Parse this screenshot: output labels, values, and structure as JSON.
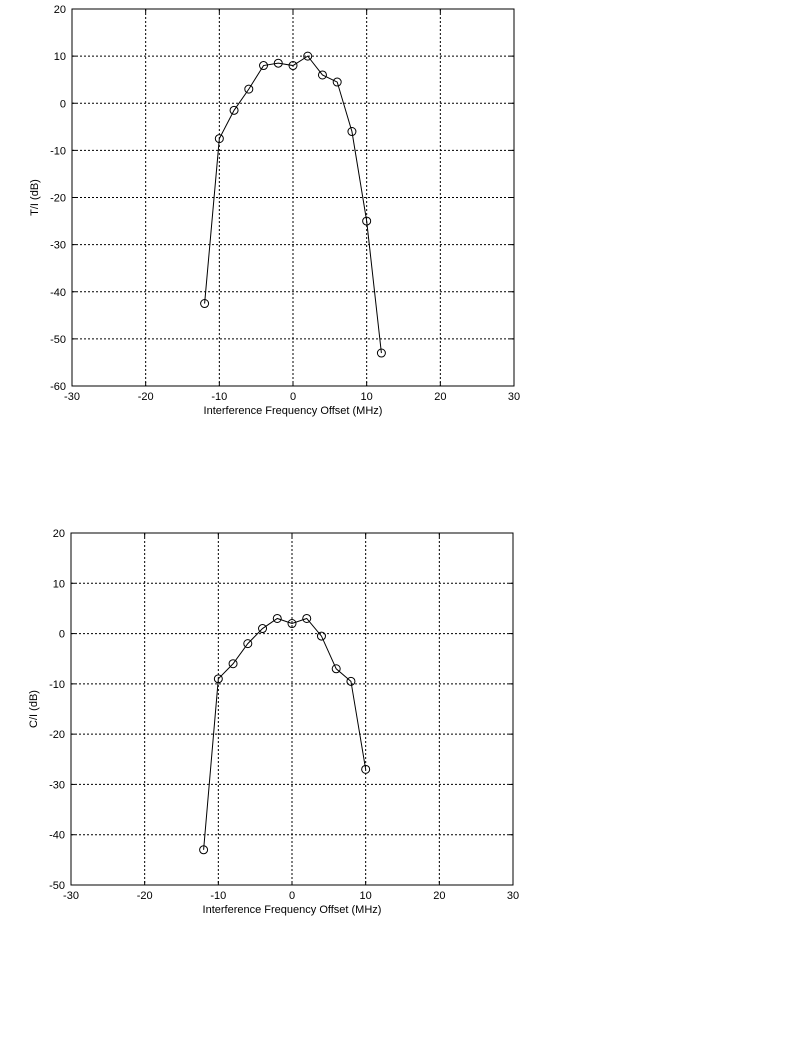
{
  "chart_data": [
    {
      "type": "line",
      "title": "",
      "xlabel": "Interference Frequency Offset (MHz)",
      "ylabel": "T/I (dB)",
      "xlim": [
        -30,
        30
      ],
      "ylim": [
        -60,
        20
      ],
      "xticks": [
        -30,
        -20,
        -10,
        0,
        10,
        20,
        30
      ],
      "yticks": [
        20,
        10,
        0,
        -10,
        -20,
        -30,
        -40,
        -50,
        -60
      ],
      "grid": true,
      "marker": "circle",
      "x": [
        -12,
        -10,
        -8,
        -6,
        -4,
        -2,
        0,
        2,
        4,
        6,
        8,
        10,
        12
      ],
      "y": [
        -42.5,
        -7.5,
        -1.5,
        3,
        8,
        8.5,
        8,
        10,
        6,
        4.5,
        -6,
        -25,
        -53
      ]
    },
    {
      "type": "line",
      "title": "",
      "xlabel": "Interference Frequency Offset (MHz)",
      "ylabel": "C/I (dB)",
      "xlim": [
        -30,
        30
      ],
      "ylim": [
        -50,
        20
      ],
      "xticks": [
        -30,
        -20,
        -10,
        0,
        10,
        20,
        30
      ],
      "yticks": [
        20,
        10,
        0,
        -10,
        -20,
        -30,
        -40,
        -50
      ],
      "grid": true,
      "marker": "circle",
      "x": [
        -12,
        -10,
        -8,
        -6,
        -4,
        -2,
        0,
        2,
        4,
        6,
        8,
        10
      ],
      "y": [
        -43,
        -9,
        -6,
        -2,
        1,
        3,
        2,
        3,
        -0.5,
        -7,
        -9.5,
        -27
      ]
    }
  ]
}
